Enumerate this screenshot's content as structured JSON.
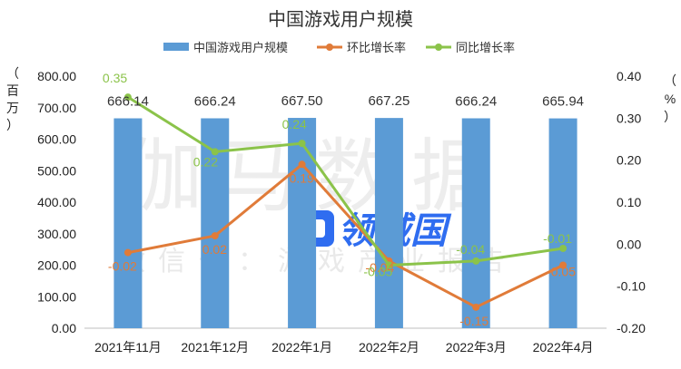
{
  "chart_data": {
    "type": "bar",
    "title": "中国游戏用户规模",
    "categories": [
      "2021年11月",
      "2021年12月",
      "2022年1月",
      "2022年2月",
      "2022年3月",
      "2022年4月"
    ],
    "y_left": {
      "unit_chars": [
        "（",
        "百",
        "万",
        "）"
      ],
      "ticks": [
        "0.00",
        "100.00",
        "200.00",
        "300.00",
        "400.00",
        "500.00",
        "600.00",
        "700.00",
        "800.00"
      ],
      "ylim": [
        0,
        800
      ]
    },
    "y_right": {
      "unit_chars": [
        "（",
        "%",
        "）"
      ],
      "ticks": [
        "-0.20",
        "-0.10",
        "0.00",
        "0.10",
        "0.20",
        "0.30",
        "0.40"
      ],
      "ylim": [
        -0.2,
        0.4
      ]
    },
    "series": [
      {
        "name": "中国游戏用户规模",
        "kind": "bar",
        "axis": "left",
        "color": "#5B9BD5",
        "values": [
          666.14,
          666.24,
          667.5,
          667.25,
          666.24,
          665.94
        ],
        "labels": [
          "666.14",
          "666.24",
          "667.50",
          "667.25",
          "666.24",
          "665.94"
        ]
      },
      {
        "name": "环比增长率",
        "kind": "line",
        "axis": "right",
        "color": "#E07B39",
        "values": [
          -0.02,
          0.02,
          0.19,
          -0.04,
          -0.15,
          -0.05
        ],
        "labels": [
          "-0.02",
          "0.02",
          "0.19",
          "-0.04",
          "-0.15",
          "-0.05"
        ]
      },
      {
        "name": "同比增长率",
        "kind": "line",
        "axis": "right",
        "color": "#8BC34A",
        "values": [
          0.35,
          0.22,
          0.24,
          -0.05,
          -0.04,
          -0.01
        ],
        "labels": [
          "0.35",
          "0.22",
          "0.24",
          "-0.05",
          "-0.04",
          "-0.01"
        ]
      }
    ],
    "legend_position": "top-center",
    "grid": false
  },
  "watermark": {
    "main": "伽马数据",
    "sub": "微信号：游戏产业报告",
    "logo": "领域国"
  }
}
